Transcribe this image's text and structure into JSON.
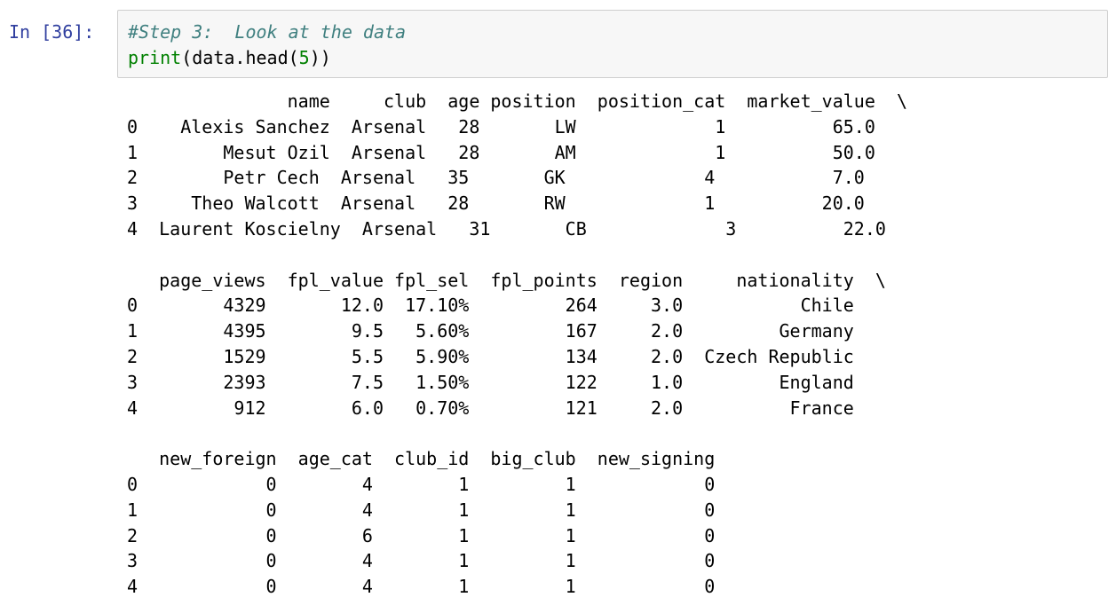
{
  "cell": {
    "prompt": "In [36]:",
    "code_comment": "#Step 3:  Look at the data",
    "code_print": "print",
    "code_open": "(data.head(",
    "code_num": "5",
    "code_close": "))"
  },
  "output_lines": [
    "               name     club  age position  position_cat  market_value  \\",
    "0    Alexis Sanchez  Arsenal   28       LW             1          65.0   ",
    "1        Mesut Ozil  Arsenal   28       AM             1          50.0   ",
    "2        Petr Cech  Arsenal   35       GK             4           7.0   ",
    "3     Theo Walcott  Arsenal   28       RW             1          20.0   ",
    "4  Laurent Koscielny  Arsenal   31       CB             3          22.0   ",
    "",
    "   page_views  fpl_value fpl_sel  fpl_points  region     nationality  \\",
    "0        4329       12.0  17.10%         264     3.0           Chile   ",
    "1        4395        9.5   5.60%         167     2.0         Germany   ",
    "2        1529        5.5   5.90%         134     2.0  Czech Republic   ",
    "3        2393        7.5   1.50%         122     1.0         England   ",
    "4         912        6.0   0.70%         121     2.0          France   ",
    "",
    "   new_foreign  age_cat  club_id  big_club  new_signing  ",
    "0            0        4        1         1            0  ",
    "1            0        4        1         1            0  ",
    "2            0        6        1         1            0  ",
    "3            0        4        1         1            0  ",
    "4            0        4        1         1            0  "
  ]
}
